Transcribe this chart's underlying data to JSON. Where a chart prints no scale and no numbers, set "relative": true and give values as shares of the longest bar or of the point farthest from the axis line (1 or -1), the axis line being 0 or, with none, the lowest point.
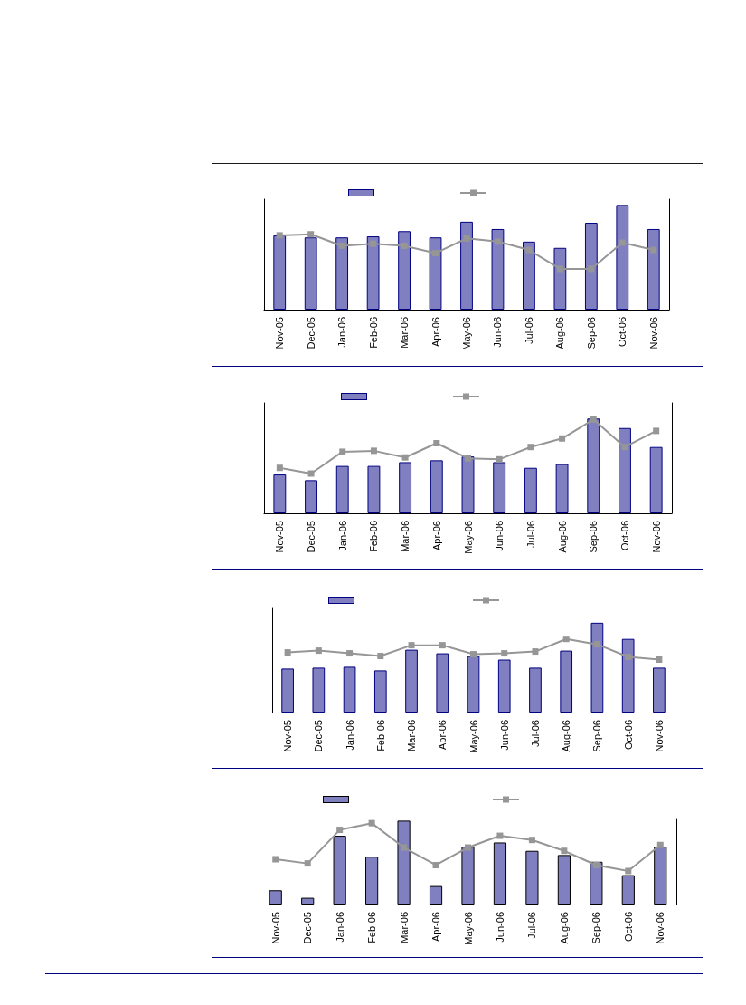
{
  "chart_data": [
    {
      "type": "bar",
      "relative": true,
      "categories": [
        "Nov-05",
        "Dec-05",
        "Jan-06",
        "Feb-06",
        "Mar-06",
        "Apr-06",
        "May-06",
        "Jun-06",
        "Jul-06",
        "Aug-06",
        "Sep-06",
        "Oct-06",
        "Nov-06"
      ],
      "series": [
        {
          "color": "#8080c0",
          "values": [
            0.71,
            0.69,
            0.69,
            0.7,
            0.75,
            0.69,
            0.84,
            0.77,
            0.65,
            0.59,
            0.83,
            1.0,
            0.77
          ]
        },
        {
          "type": "line",
          "color": "#969696",
          "values": [
            0.71,
            0.72,
            0.61,
            0.63,
            0.61,
            0.54,
            0.68,
            0.65,
            0.57,
            0.39,
            0.39,
            0.64,
            0.57
          ]
        }
      ],
      "marker": "square",
      "grid": false
    },
    {
      "type": "bar",
      "relative": true,
      "categories": [
        "Nov-05",
        "Dec-05",
        "Jan-06",
        "Feb-06",
        "Mar-06",
        "Apr-06",
        "May-06",
        "Jun-06",
        "Jul-06",
        "Aug-06",
        "Sep-06",
        "Oct-06",
        "Nov-06"
      ],
      "series": [
        {
          "color": "#8080c0",
          "values": [
            0.41,
            0.35,
            0.5,
            0.5,
            0.54,
            0.56,
            0.6,
            0.54,
            0.48,
            0.52,
            1.0,
            0.9,
            0.7
          ]
        },
        {
          "type": "line",
          "color": "#969696",
          "values": [
            0.48,
            0.42,
            0.65,
            0.66,
            0.59,
            0.74,
            0.58,
            0.57,
            0.7,
            0.79,
            0.99,
            0.7,
            0.87
          ]
        }
      ],
      "marker": "square",
      "grid": false
    },
    {
      "type": "bar",
      "relative": true,
      "categories": [
        "Nov-05",
        "Dec-05",
        "Jan-06",
        "Feb-06",
        "Mar-06",
        "Apr-06",
        "May-06",
        "Jun-06",
        "Jul-06",
        "Aug-06",
        "Sep-06",
        "Oct-06",
        "Nov-06"
      ],
      "series": [
        {
          "color": "#8080c0",
          "values": [
            0.49,
            0.5,
            0.51,
            0.47,
            0.7,
            0.66,
            0.63,
            0.59,
            0.5,
            0.69,
            1.0,
            0.82,
            0.5
          ]
        },
        {
          "type": "line",
          "color": "#969696",
          "values": [
            0.67,
            0.69,
            0.66,
            0.63,
            0.75,
            0.75,
            0.65,
            0.66,
            0.68,
            0.82,
            0.76,
            0.62,
            0.59
          ]
        }
      ],
      "marker": "square",
      "grid": false
    },
    {
      "type": "bar",
      "relative": true,
      "categories": [
        "Nov-05",
        "Dec-05",
        "Jan-06",
        "Feb-06",
        "Mar-06",
        "Apr-06",
        "May-06",
        "Jun-06",
        "Jul-06",
        "Aug-06",
        "Sep-06",
        "Oct-06",
        "Nov-06"
      ],
      "series": [
        {
          "color": "#8080c0",
          "values": [
            0.17,
            0.08,
            0.82,
            0.57,
            1.0,
            0.22,
            0.69,
            0.74,
            0.64,
            0.59,
            0.51,
            0.35,
            0.69
          ]
        },
        {
          "type": "line",
          "color": "#969696",
          "values": [
            0.54,
            0.49,
            0.89,
            0.97,
            0.68,
            0.47,
            0.68,
            0.82,
            0.77,
            0.64,
            0.47,
            0.4,
            0.71
          ]
        }
      ],
      "marker": "square",
      "grid": false
    }
  ]
}
